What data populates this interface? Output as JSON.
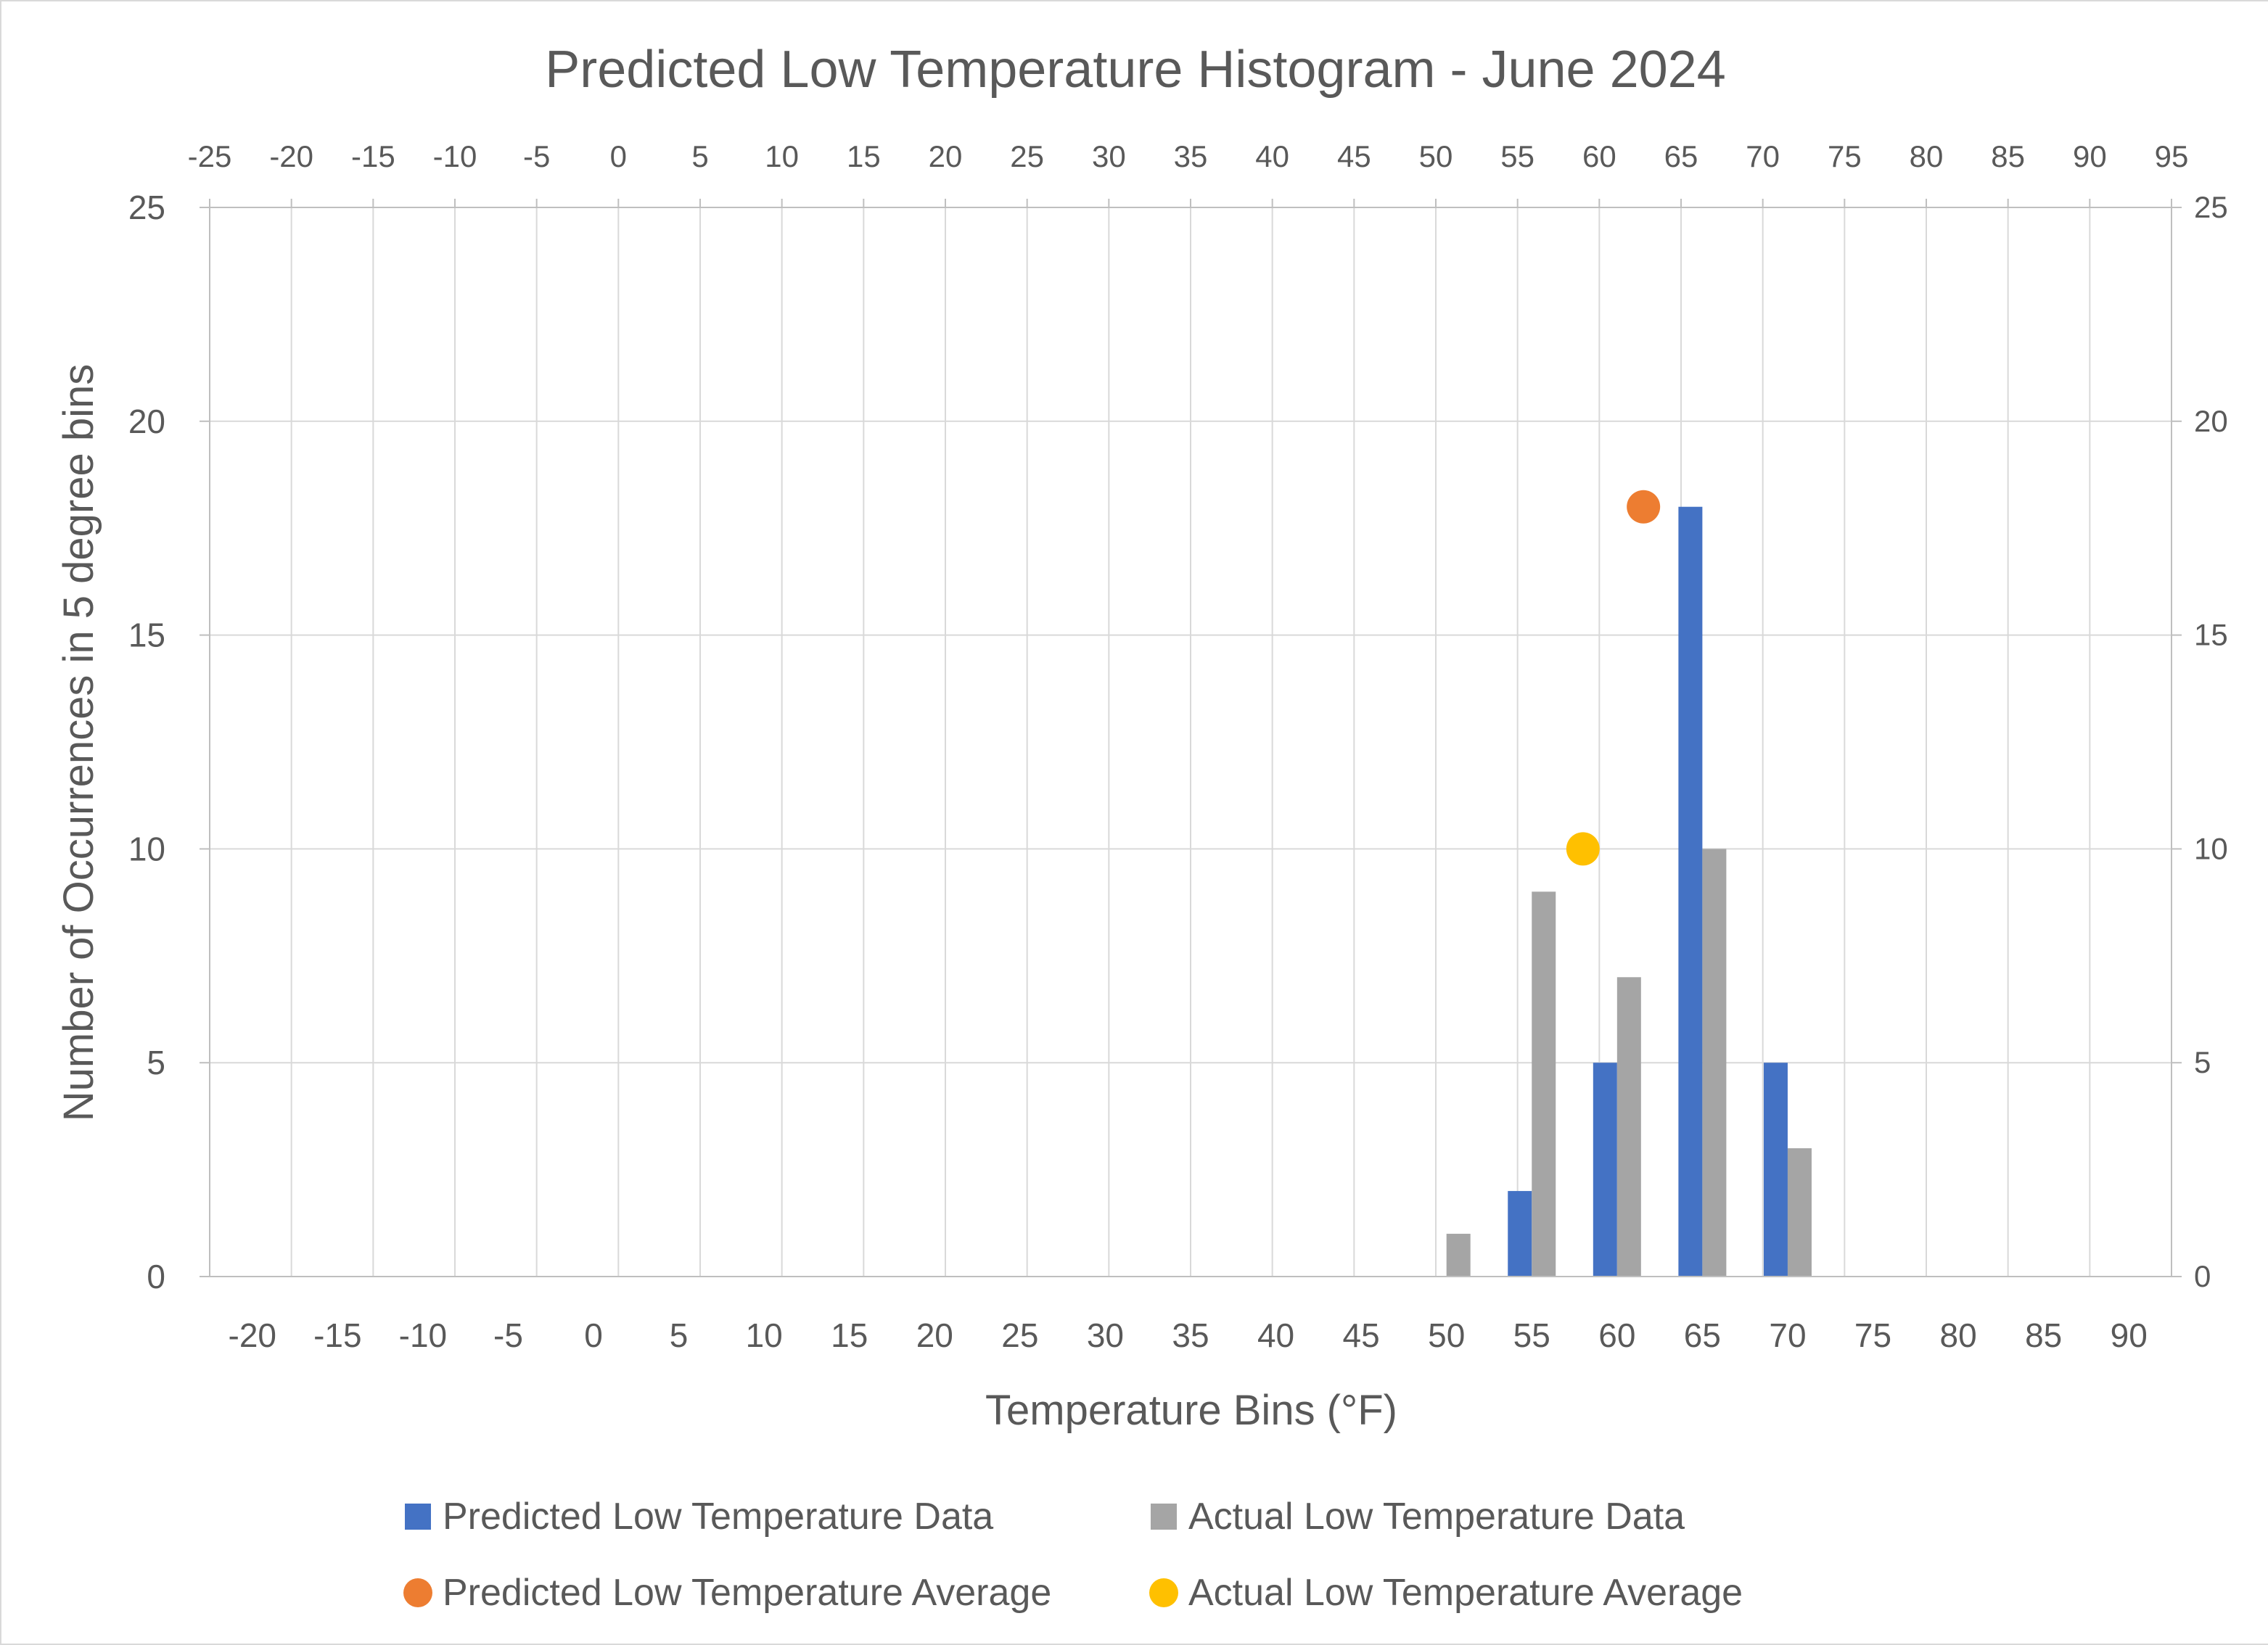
{
  "chart_data": {
    "type": "bar",
    "title": "Predicted Low Temperature Histogram - June 2024",
    "xlabel": "Temperature Bins (°F)",
    "ylabel": "Number of Occurrences in 5 degree bins",
    "categories": [
      "-20",
      "-15",
      "-10",
      "-5",
      "0",
      "5",
      "10",
      "15",
      "20",
      "25",
      "30",
      "35",
      "40",
      "45",
      "50",
      "55",
      "60",
      "65",
      "70",
      "75",
      "80",
      "85",
      "90"
    ],
    "series": [
      {
        "name": "Predicted Low Temperature Data",
        "color": "#4472c4",
        "values": [
          0,
          0,
          0,
          0,
          0,
          0,
          0,
          0,
          0,
          0,
          0,
          0,
          0,
          0,
          0,
          2,
          5,
          18,
          5,
          0,
          0,
          0,
          0
        ]
      },
      {
        "name": "Actual Low Temperature Data",
        "color": "#a5a5a5",
        "values": [
          0,
          0,
          0,
          0,
          0,
          0,
          0,
          0,
          0,
          0,
          0,
          0,
          0,
          0,
          1,
          9,
          7,
          10,
          3,
          0,
          0,
          0,
          0
        ]
      }
    ],
    "scatter_series": [
      {
        "name": "Predicted Low Temperature Average",
        "color": "#ed7d31",
        "x": 62.7,
        "y": 18
      },
      {
        "name": "Actual Low Temperature Average",
        "color": "#ffc000",
        "x": 59.0,
        "y": 10
      }
    ],
    "secondary_x_ticks": [
      "-25",
      "-20",
      "-15",
      "-10",
      "-5",
      "0",
      "5",
      "10",
      "15",
      "20",
      "25",
      "30",
      "35",
      "40",
      "45",
      "50",
      "55",
      "60",
      "65",
      "70",
      "75",
      "80",
      "85",
      "90",
      "95"
    ],
    "secondary_xlim": [
      -25,
      95
    ],
    "y_ticks": [
      "0",
      "5",
      "10",
      "15",
      "20",
      "25"
    ],
    "secondary_y_ticks": [
      "0",
      "5",
      "10",
      "15",
      "20",
      "25"
    ],
    "ylim": [
      0,
      25
    ],
    "grid": true,
    "legend_position": "bottom"
  }
}
